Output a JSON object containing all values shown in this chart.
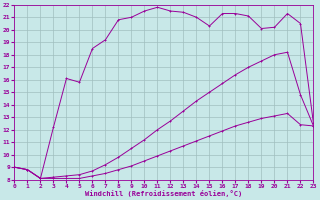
{
  "xlabel": "Windchill (Refroidissement éolien,°C)",
  "bg_color": "#c8e8e8",
  "grid_color": "#a0bfbf",
  "line_color": "#990099",
  "xmin": 0,
  "xmax": 23,
  "ymin": 8,
  "ymax": 22,
  "line1_x": [
    0,
    1,
    2,
    3,
    4,
    5,
    6,
    7,
    8,
    9,
    10,
    11,
    12,
    13,
    14,
    15,
    16,
    17,
    18,
    19,
    20,
    21,
    22,
    23
  ],
  "line1_y": [
    9.0,
    8.8,
    8.1,
    8.1,
    8.1,
    8.1,
    8.3,
    8.5,
    8.8,
    9.1,
    9.5,
    9.9,
    10.3,
    10.7,
    11.1,
    11.5,
    11.9,
    12.3,
    12.6,
    12.9,
    13.1,
    13.3,
    12.4,
    12.3
  ],
  "line2_x": [
    0,
    1,
    2,
    3,
    4,
    5,
    6,
    7,
    8,
    9,
    10,
    11,
    12,
    13,
    14,
    15,
    16,
    17,
    18,
    19,
    20,
    21,
    22,
    23
  ],
  "line2_y": [
    9.0,
    8.8,
    8.1,
    8.2,
    8.3,
    8.4,
    8.7,
    9.2,
    9.8,
    10.5,
    11.2,
    12.0,
    12.7,
    13.5,
    14.3,
    15.0,
    15.7,
    16.4,
    17.0,
    17.5,
    18.0,
    18.2,
    14.8,
    12.3
  ],
  "line3_x": [
    0,
    1,
    2,
    3,
    4,
    5,
    6,
    7,
    8,
    9,
    10,
    11,
    12,
    13,
    14,
    15,
    16,
    17,
    18,
    19,
    20,
    21,
    22,
    23
  ],
  "line3_y": [
    9.0,
    8.8,
    8.1,
    12.2,
    16.1,
    15.8,
    18.5,
    19.2,
    20.8,
    21.0,
    21.5,
    21.8,
    21.5,
    21.4,
    21.0,
    20.3,
    21.3,
    21.3,
    21.1,
    20.1,
    20.2,
    21.3,
    20.5,
    12.5
  ],
  "yticks": [
    8,
    9,
    10,
    11,
    12,
    13,
    14,
    15,
    16,
    17,
    18,
    19,
    20,
    21,
    22
  ],
  "xticks": [
    0,
    1,
    2,
    3,
    4,
    5,
    6,
    7,
    8,
    9,
    10,
    11,
    12,
    13,
    14,
    15,
    16,
    17,
    18,
    19,
    20,
    21,
    22,
    23
  ]
}
